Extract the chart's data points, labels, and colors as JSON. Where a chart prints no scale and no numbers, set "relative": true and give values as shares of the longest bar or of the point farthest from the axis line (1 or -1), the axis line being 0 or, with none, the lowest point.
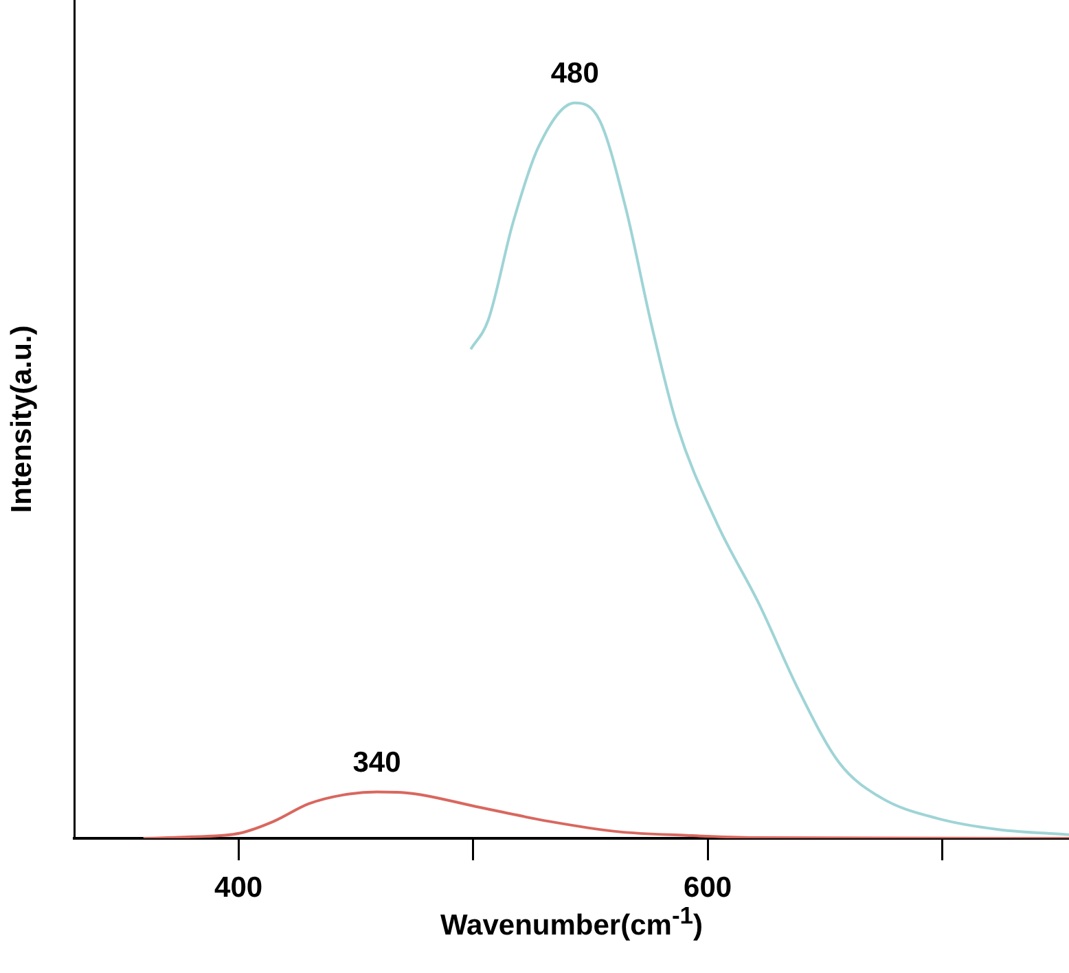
{
  "chart_data": {
    "type": "line",
    "xlabel": "Wavenumber(cm$^{-1}$)",
    "ylabel": "Intensity(a.u.)",
    "relative": true,
    "grid": false,
    "legend": false,
    "marker": "none",
    "line_style": "solid",
    "xlim": [
      330,
      754
    ],
    "xticks": [
      400,
      {
        "value": 500,
        "label": null
      },
      600,
      {
        "value": 700,
        "label": null
      }
    ],
    "series": [
      {
        "color": "#9fd4d6",
        "x": [
          499,
          506.5,
          517,
          528,
          543.4,
          554,
          565,
          576,
          587,
          604,
          622,
          639,
          656,
          674,
          698,
          724,
          754
        ],
        "values": [
          0.665,
          0.705,
          0.837,
          0.941,
          1,
          0.976,
          0.858,
          0.699,
          0.561,
          0.428,
          0.318,
          0.2,
          0.103,
          0.055,
          0.027,
          0.012,
          0.005
        ]
      },
      {
        "color": "#d9675e",
        "x": [
          359.5,
          380,
          400.6,
          415,
          430,
          444.6,
          459,
          474,
          503,
          532.5,
          562,
          591,
          620,
          754
        ],
        "values": [
          0,
          0.002,
          0.007,
          0.023,
          0.047,
          0.059,
          0.063,
          0.061,
          0.042,
          0.023,
          0.009,
          0.004,
          0.001,
          0
        ]
      }
    ],
    "annotations": [
      {
        "text": "480",
        "x": 543.4,
        "y": 1
      },
      {
        "text": "340",
        "x": 459,
        "y": 0.063
      }
    ]
  }
}
